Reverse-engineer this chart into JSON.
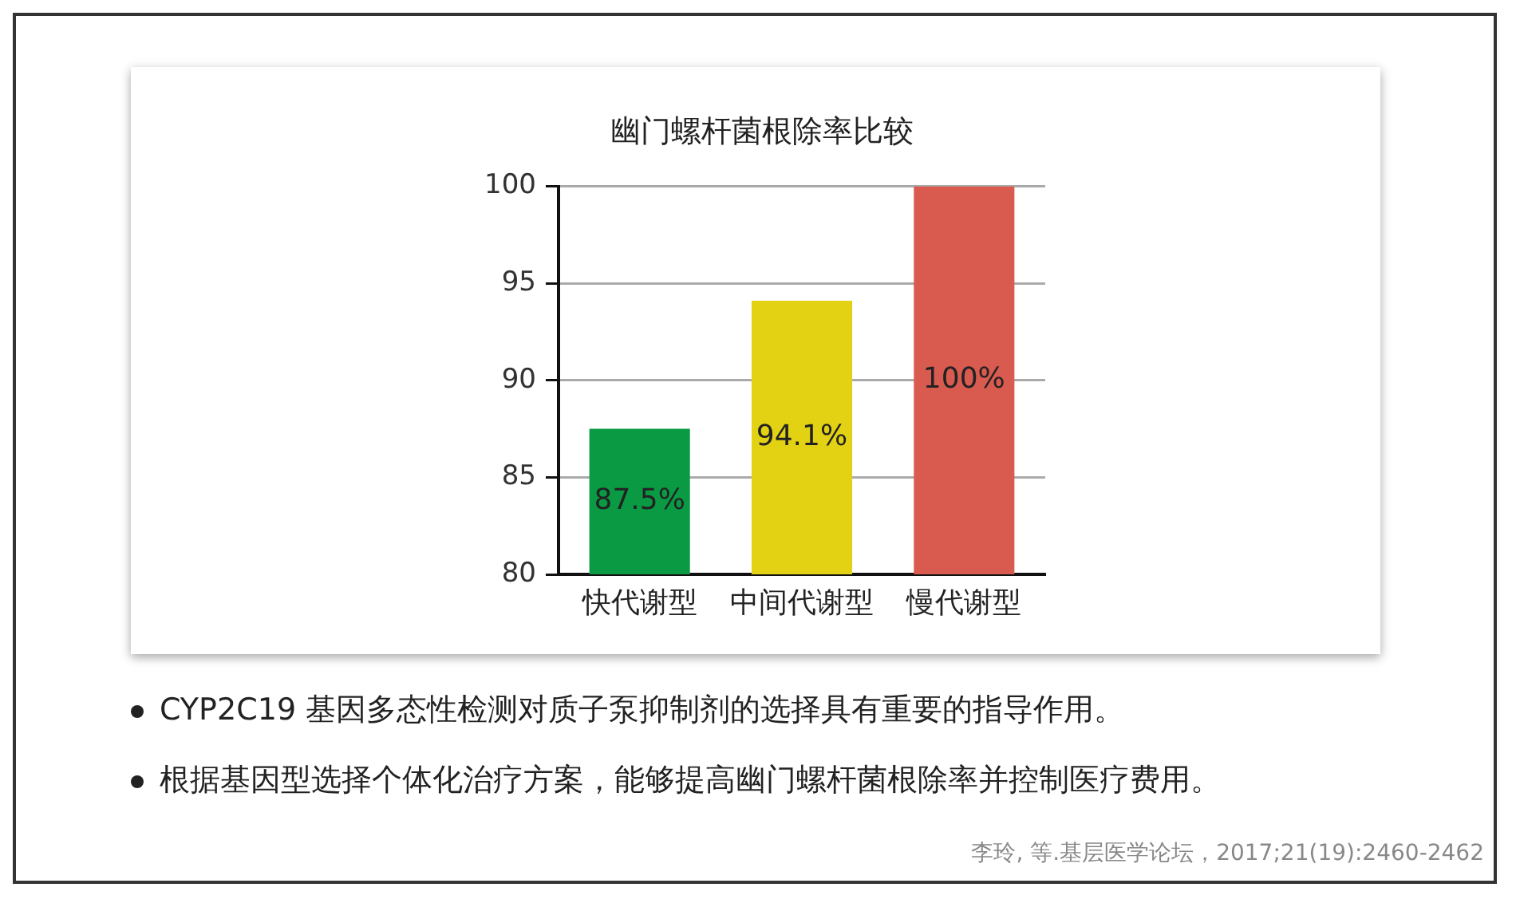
{
  "chart_data": {
    "type": "bar",
    "title": "幽门螺杆菌根除率比较",
    "categories": [
      "快代谢型",
      "中间代谢型",
      "慢代谢型"
    ],
    "values": [
      87.5,
      94.1,
      100
    ],
    "colors": [
      "#0a9a44",
      "#e3d214",
      "#d95b50"
    ],
    "value_labels": [
      "87.5%",
      "94.1%",
      "100%"
    ],
    "ylim": [
      80,
      100
    ],
    "yticks": [
      80,
      85,
      90,
      95,
      100
    ],
    "grid": "y",
    "legend": false,
    "annotations": [
      "CYP2C19 基因多态性检测对质子泵抑制剂的选择具有重要的指导作用。",
      "根据基因型选择个体化治疗方案，能够提高幽门螺杆菌根除率并控制医疗费用。",
      "李玲, 等.基层医学论坛，2017;21(19):2460-2462"
    ]
  }
}
